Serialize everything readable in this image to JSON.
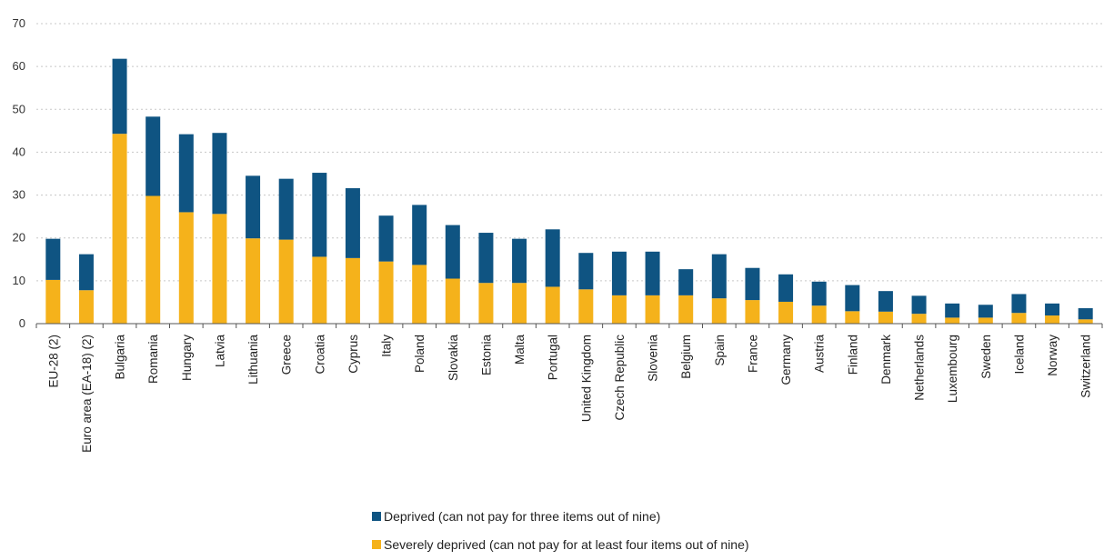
{
  "chart_data": {
    "type": "bar",
    "stacked": true,
    "title": "",
    "xlabel": "",
    "ylabel": "",
    "ylim": [
      0,
      70
    ],
    "yticks": [
      0,
      10,
      20,
      30,
      40,
      50,
      60,
      70
    ],
    "grid": true,
    "legend_position": "bottom-center",
    "categories": [
      "EU-28 (2)",
      "Euro area (EA-18) (2)",
      "Bulgaria",
      "Romania",
      "Hungary",
      "Latvia",
      "Lithuania",
      "Greece",
      "Croatia",
      "Cyprus",
      "Italy",
      "Poland",
      "Slovakia",
      "Estonia",
      "Malta",
      "Portugal",
      "United Kingdom",
      "Czech Republic",
      "Slovenia",
      "Belgium",
      "Spain",
      "France",
      "Germany",
      "Austria",
      "Finland",
      "Denmark",
      "Netherlands",
      "Luxembourg",
      "Sweden",
      "Iceland",
      "Norway",
      "Switzerland"
    ],
    "series": [
      {
        "name": "Severely deprived (can not pay for at least four items out of nine)",
        "color": "#f5b21b",
        "values": [
          10.2,
          7.8,
          44.3,
          29.8,
          26,
          25.6,
          19.9,
          19.6,
          15.6,
          15.3,
          14.5,
          13.7,
          10.5,
          9.5,
          9.5,
          8.6,
          8,
          6.6,
          6.6,
          6.6,
          5.9,
          5.5,
          5.1,
          4.2,
          2.9,
          2.8,
          2.3,
          1.4,
          1.4,
          2.5,
          1.9,
          1
        ]
      },
      {
        "name": "Deprived (can not pay for three items out of nine)",
        "color": "#0f5482",
        "values": [
          9.6,
          8.4,
          17.5,
          18.5,
          18.2,
          18.9,
          14.6,
          14.2,
          19.6,
          16.3,
          10.7,
          14,
          12.5,
          11.7,
          10.3,
          13.4,
          8.5,
          10.2,
          10.2,
          6.1,
          10.3,
          7.5,
          6.4,
          5.6,
          6.1,
          4.8,
          4.2,
          3.3,
          3,
          4.4,
          2.8,
          2.6
        ]
      }
    ]
  }
}
